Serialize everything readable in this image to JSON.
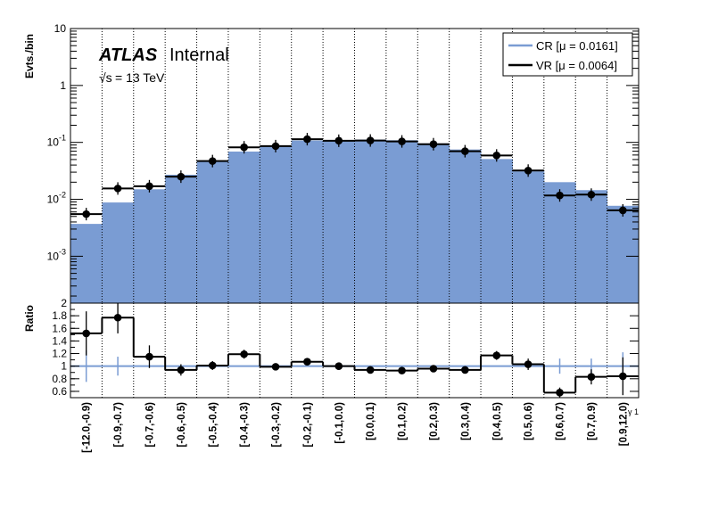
{
  "chart_data": [
    {
      "type": "histogram",
      "title": "",
      "ylabel": "Evts./bin",
      "xlabel": "",
      "log_y": true,
      "ylim": [
        0.00015,
        10
      ],
      "y_ticks": [
        {
          "value": 10,
          "label": "10"
        },
        {
          "value": 1,
          "label": "1"
        },
        {
          "value": 0.1,
          "label": "10^{-1}"
        },
        {
          "value": 0.01,
          "label": "10^{-2}"
        },
        {
          "value": 0.001,
          "label": "10^{-3}"
        }
      ],
      "grid_x": true,
      "legend_position": "top-right",
      "annotations": {
        "experiment": "ATLAS",
        "status": "Internal",
        "energy": "= 13 TeV",
        "energy_sqrt": "√s"
      },
      "categories": [
        "[-12.0,-0.9)",
        "[-0.9,-0.7)",
        "[-0.7,-0.6)",
        "[-0.6,-0.5)",
        "[-0.5,-0.4)",
        "[-0.4,-0.3)",
        "[-0.3,-0.2)",
        "[-0.2,-0.1)",
        "[-0.1,0.0)",
        "[0.0,0.1)",
        "[0.1,0.2)",
        "[0.2,0.3)",
        "[0.3,0.4)",
        "[0.4,0.5)",
        "[0.5,0.6)",
        "[0.6,0.7)",
        "[0.7,0.9)",
        "[0.9,12.0)"
      ],
      "series": [
        {
          "name": "CR [μ = 0.0161]",
          "style": "filled-histogram",
          "color": "#7a9cd3",
          "values": [
            0.0037,
            0.0088,
            0.015,
            0.027,
            0.047,
            0.069,
            0.086,
            0.108,
            0.108,
            0.112,
            0.109,
            0.096,
            0.075,
            0.051,
            0.031,
            0.02,
            0.0145,
            0.0077
          ]
        },
        {
          "name": "VR [μ = 0.0064]",
          "style": "points",
          "color": "#000000",
          "values": [
            0.0055,
            0.0155,
            0.017,
            0.025,
            0.047,
            0.082,
            0.086,
            0.114,
            0.107,
            0.108,
            0.104,
            0.093,
            0.07,
            0.059,
            0.032,
            0.0117,
            0.0121,
            0.0064
          ]
        }
      ]
    },
    {
      "type": "ratio",
      "ylabel": "Ratio",
      "ylim": [
        0.5,
        2.0
      ],
      "y_ticks": [
        "0.6",
        "0.8",
        "1",
        "1.2",
        "1.4",
        "1.6",
        "1.8",
        "2"
      ],
      "reference": 1,
      "reference_color": "#7a9cd3",
      "axis_label_fragment": "γ 1",
      "categories": [
        "[-12.0,-0.9)",
        "[-0.9,-0.7)",
        "[-0.7,-0.6)",
        "[-0.6,-0.5)",
        "[-0.5,-0.4)",
        "[-0.4,-0.3)",
        "[-0.3,-0.2)",
        "[-0.2,-0.1)",
        "[-0.1,0.0)",
        "[0.0,0.1)",
        "[0.1,0.2)",
        "[0.2,0.3)",
        "[0.3,0.4)",
        "[0.4,0.5)",
        "[0.5,0.6)",
        "[0.6,0.7)",
        "[0.7,0.9)",
        "[0.9,12.0)"
      ],
      "values": [
        1.52,
        1.77,
        1.15,
        0.94,
        1.01,
        1.19,
        0.99,
        1.07,
        1.0,
        0.94,
        0.93,
        0.96,
        0.94,
        1.17,
        1.03,
        0.58,
        0.83,
        0.84
      ],
      "errors": [
        0.35,
        0.25,
        0.18,
        0.09,
        0.07,
        0.07,
        0.04,
        0.04,
        0.03,
        0.03,
        0.03,
        0.04,
        0.05,
        0.07,
        0.09,
        0.08,
        0.12,
        0.3
      ],
      "cr_errors": [
        0.25,
        0.15,
        0.0,
        0.0,
        0.0,
        0.0,
        0.0,
        0.0,
        0.0,
        0.0,
        0.0,
        0.0,
        0.0,
        0.0,
        0.0,
        0.12,
        0.12,
        0.22
      ]
    }
  ]
}
